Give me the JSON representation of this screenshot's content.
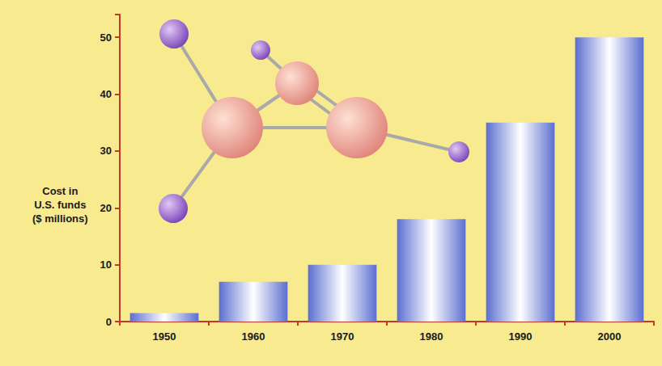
{
  "chart_data": {
    "type": "bar",
    "ylabel": "Cost in U.S. funds ($ millions)",
    "categories": [
      "1950",
      "1960",
      "1970",
      "1980",
      "1990",
      "2000"
    ],
    "values": [
      1.5,
      7,
      10,
      18,
      35,
      50
    ],
    "color": "#5b6fd0",
    "ylim": [
      0,
      54
    ],
    "yticks": [
      0,
      10,
      20,
      30,
      40,
      50
    ],
    "grid": false
  }
}
